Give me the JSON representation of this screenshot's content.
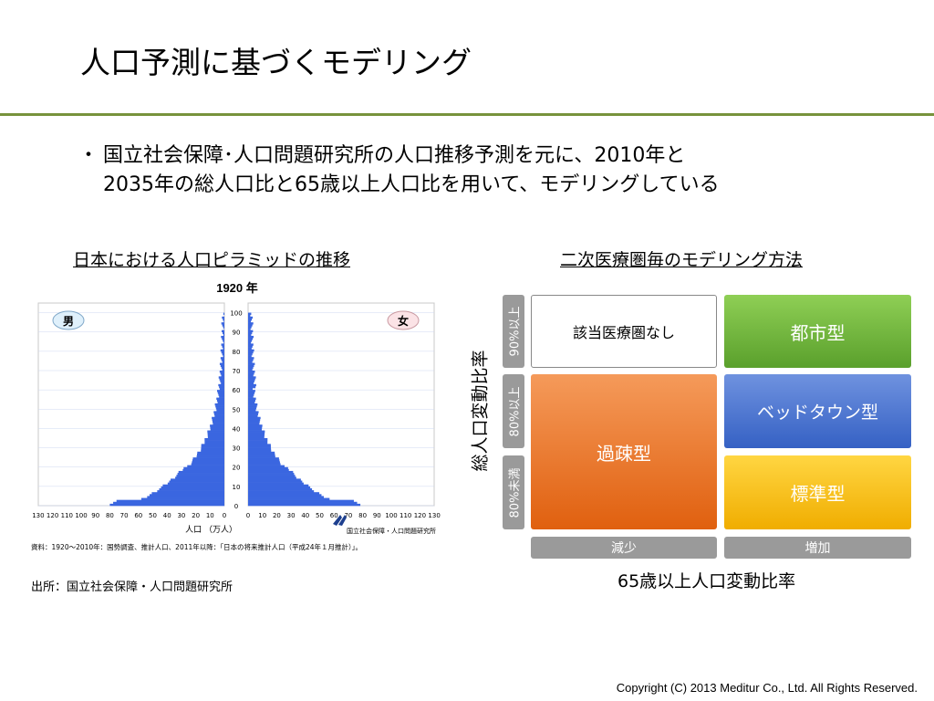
{
  "title": "人口予測に基づくモデリング",
  "bullet": {
    "marker": "・",
    "line1": "国立社会保障･人口問題研究所の人口推移予測を元に、2010年と",
    "line2": "2035年の総人口比と65歳以上人口比を用いて、モデリングしている"
  },
  "left_heading": "日本における人口ピラミッドの推移",
  "right_heading": "二次医療圏毎のモデリング方法",
  "pyramid": {
    "year_label": "1920 年",
    "male_label": "男",
    "female_label": "女",
    "age_ticks": [
      "100",
      "90",
      "80",
      "70",
      "60",
      "50",
      "40",
      "30",
      "20",
      "10",
      "0"
    ],
    "x_ticks_left": [
      "130",
      "120",
      "110",
      "100",
      "90",
      "80",
      "70",
      "60",
      "50",
      "40",
      "30",
      "20",
      "10",
      "0"
    ],
    "x_ticks_right": [
      "0",
      "10",
      "20",
      "30",
      "40",
      "50",
      "60",
      "70",
      "80",
      "90",
      "100",
      "110",
      "120",
      "130"
    ],
    "x_unit": "人口 （万人）",
    "org_label": "国立社会保障・人口問題研究所",
    "note": "資料：1920～2010年：国勢調査、推計人口、2011年以降：「日本の将来推計人口（平成24年１月推計）」。",
    "colors": {
      "bar": "#3a66e0",
      "grid": "#cfd8f0",
      "male_badge": "#dff0fb",
      "female_badge": "#fbe3e6"
    }
  },
  "matrix": {
    "cells": {
      "none": "該当医療圏なし",
      "urban": "都市型",
      "depop": "過疎型",
      "bed": "ベッドタウン型",
      "standard": "標準型"
    },
    "row_tags": [
      "90%以上",
      "80%以上",
      "80%未満"
    ],
    "col_tags": [
      "減少",
      "増加"
    ],
    "x_axis_label": "65歳以上人口変動比率",
    "y_axis_label": "総人口変動比率",
    "colors": {
      "urban": "#6db33f",
      "depop": "#ec7224",
      "bed": "#4472c4",
      "standard": "#ffc000",
      "tag": "#9a9a9a"
    }
  },
  "source": "出所：国立社会保障・人口問題研究所",
  "copyright": "Copyright (C) 2013 Meditur Co., Ltd. All Rights Reserved."
}
